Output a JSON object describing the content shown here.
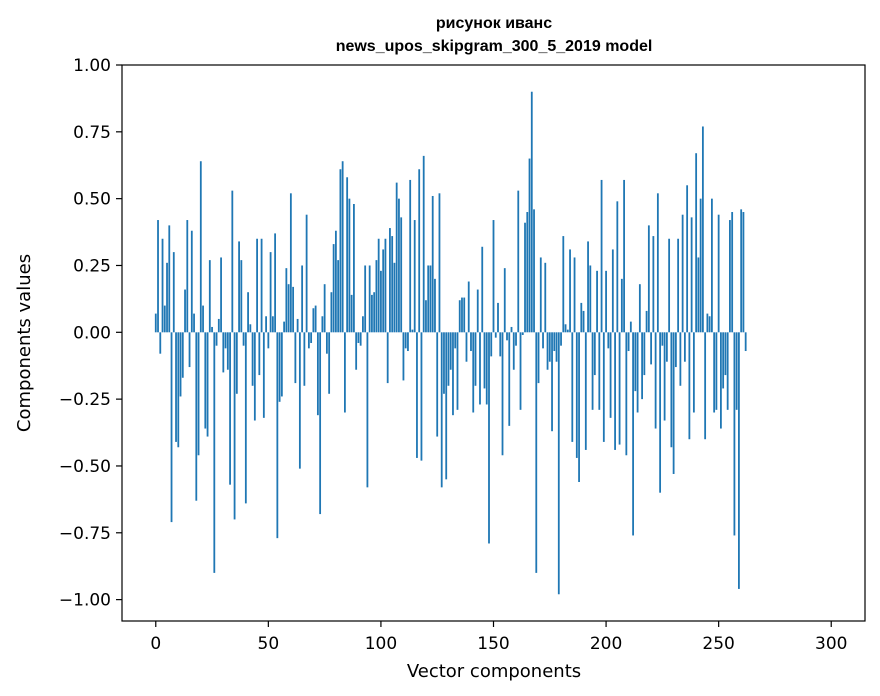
{
  "chart_data": {
    "type": "bar",
    "title": "рисунок иванс",
    "subtitle": "news_upos_skipgram_300_5_2019 model",
    "xlabel": "Vector components",
    "ylabel": "Components values",
    "xlim": [
      -15,
      315
    ],
    "ylim": [
      -1.08,
      1.0
    ],
    "xticks": [
      0,
      50,
      100,
      150,
      200,
      250,
      300
    ],
    "xtick_labels": [
      "0",
      "50",
      "100",
      "150",
      "200",
      "250",
      "300"
    ],
    "yticks": [
      1.0,
      0.75,
      0.5,
      0.25,
      0.0,
      -0.25,
      -0.5,
      -0.75,
      -1.0
    ],
    "ytick_labels": [
      "1.00",
      "0.75",
      "0.50",
      "0.25",
      "0.00",
      "−0.25",
      "−0.50",
      "−0.75",
      "−1.00"
    ],
    "grid": false,
    "bar_color": "#1f77b4",
    "series": [
      {
        "values": [
          0.07,
          0.42,
          -0.08,
          0.35,
          0.1,
          0.26,
          0.4,
          -0.71,
          0.3,
          -0.41,
          -0.43,
          -0.24,
          -0.17,
          0.16,
          0.42,
          -0.13,
          0.38,
          0.07,
          -0.63,
          -0.46,
          0.64,
          0.1,
          -0.36,
          -0.39,
          0.27,
          0.02,
          -0.9,
          -0.05,
          0.05,
          0.28,
          -0.15,
          -0.06,
          -0.14,
          -0.57,
          0.53,
          -0.7,
          -0.23,
          0.34,
          0.27,
          -0.05,
          -0.64,
          0.15,
          0.03,
          -0.2,
          -0.33,
          0.35,
          -0.16,
          0.35,
          -0.32,
          0.06,
          -0.06,
          0.3,
          0.06,
          0.37,
          -0.77,
          -0.26,
          -0.24,
          0.04,
          0.24,
          0.18,
          0.52,
          0.17,
          -0.19,
          0.05,
          -0.51,
          0.25,
          -0.2,
          0.44,
          -0.06,
          -0.04,
          0.09,
          0.1,
          -0.31,
          -0.68,
          0.06,
          0.18,
          -0.08,
          -0.23,
          0.15,
          0.33,
          0.38,
          0.27,
          0.61,
          0.64,
          -0.3,
          0.58,
          0.5,
          0.14,
          0.48,
          -0.14,
          -0.04,
          -0.05,
          0.06,
          0.25,
          -0.58,
          0.25,
          0.14,
          0.15,
          0.27,
          0.35,
          0.23,
          0.31,
          0.35,
          -0.19,
          0.39,
          0.36,
          0.26,
          0.56,
          0.5,
          0.43,
          -0.18,
          -0.06,
          -0.07,
          0.57,
          0.01,
          0.42,
          -0.47,
          0.61,
          -0.48,
          0.66,
          0.12,
          0.25,
          0.25,
          0.51,
          0.2,
          -0.39,
          0.52,
          -0.58,
          -0.23,
          -0.55,
          -0.2,
          -0.14,
          -0.31,
          -0.06,
          -0.29,
          0.12,
          0.13,
          0.13,
          -0.11,
          0.19,
          -0.07,
          -0.3,
          -0.2,
          0.16,
          -0.27,
          0.32,
          -0.21,
          -0.27,
          -0.79,
          -0.09,
          0.42,
          -0.02,
          0.11,
          -0.09,
          -0.46,
          0.24,
          -0.03,
          -0.35,
          0.02,
          -0.14,
          -0.05,
          0.53,
          -0.29,
          -0.01,
          0.41,
          0.45,
          0.65,
          0.9,
          0.46,
          -0.9,
          -0.19,
          0.28,
          -0.06,
          0.26,
          -0.14,
          -0.11,
          -0.37,
          -0.07,
          -0.11,
          -0.98,
          -0.05,
          0.36,
          0.03,
          0.01,
          0.31,
          -0.41,
          0.28,
          -0.47,
          -0.56,
          0.11,
          0.08,
          -0.44,
          0.34,
          0.25,
          -0.29,
          -0.16,
          0.23,
          -0.29,
          0.57,
          -0.41,
          0.23,
          -0.06,
          -0.32,
          0.31,
          -0.44,
          0.49,
          -0.42,
          0.2,
          0.57,
          -0.46,
          -0.07,
          0.04,
          -0.76,
          -0.22,
          -0.3,
          0.18,
          -0.25,
          -0.16,
          0.08,
          0.4,
          -0.12,
          0.36,
          -0.36,
          0.52,
          -0.6,
          -0.05,
          -0.33,
          -0.11,
          0.35,
          -0.43,
          -0.53,
          -0.13,
          0.35,
          -0.2,
          0.44,
          -0.11,
          0.55,
          -0.4,
          0.43,
          -0.3,
          0.67,
          0.28,
          0.5,
          0.77,
          -0.4,
          0.07,
          0.06,
          0.5,
          -0.3,
          -0.29,
          0.44,
          -0.36,
          -0.21,
          -0.16,
          -0.29,
          0.42,
          0.45,
          -0.76,
          -0.29,
          -0.96,
          0.46,
          0.45,
          -0.07
        ]
      }
    ]
  }
}
